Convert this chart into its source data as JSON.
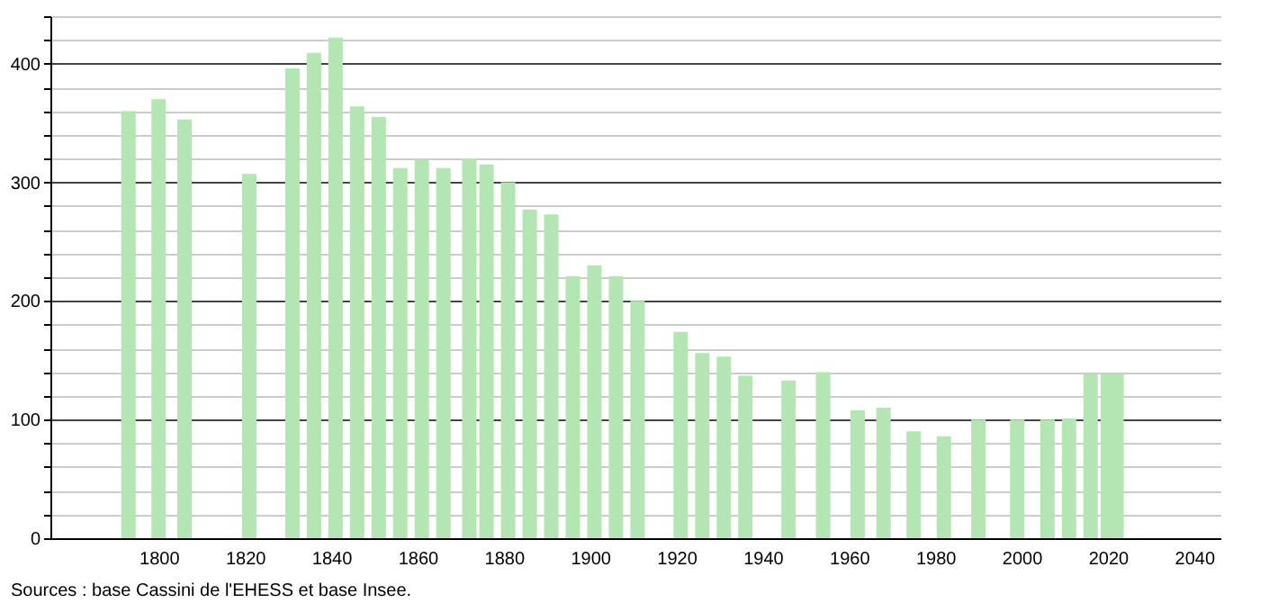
{
  "chart_data": {
    "type": "bar",
    "x": [
      1793,
      1800,
      1806,
      1821,
      1831,
      1836,
      1841,
      1846,
      1851,
      1856,
      1861,
      1866,
      1872,
      1876,
      1881,
      1886,
      1891,
      1896,
      1901,
      1906,
      1911,
      1921,
      1926,
      1931,
      1936,
      1946,
      1954,
      1962,
      1968,
      1975,
      1982,
      1990,
      1999,
      2006,
      2011,
      2016,
      2020,
      2022
    ],
    "values": [
      360,
      370,
      353,
      307,
      396,
      409,
      422,
      364,
      355,
      312,
      319,
      312,
      320,
      315,
      300,
      277,
      273,
      221,
      230,
      221,
      200,
      174,
      156,
      153,
      137,
      133,
      140,
      108,
      110,
      90,
      86,
      100,
      100,
      100,
      101,
      138,
      138,
      138
    ],
    "color": "#b3e6b3",
    "xlim": [
      1777,
      2044
    ],
    "xticks": [
      1800,
      1820,
      1840,
      1860,
      1880,
      1900,
      1920,
      1940,
      1960,
      1980,
      2000,
      2020,
      2040
    ],
    "ylim": [
      0,
      440
    ],
    "yticks": [
      0,
      {
        "value": 20,
        "label": null
      },
      {
        "value": 40,
        "label": null
      },
      {
        "value": 60,
        "label": null
      },
      {
        "value": 80,
        "label": null
      },
      100,
      {
        "value": 120,
        "label": null
      },
      {
        "value": 140,
        "label": null
      },
      {
        "value": 160,
        "label": null
      },
      {
        "value": 180,
        "label": null
      },
      200,
      {
        "value": 220,
        "label": null
      },
      {
        "value": 240,
        "label": null
      },
      {
        "value": 260,
        "label": null
      },
      {
        "value": 280,
        "label": null
      },
      300,
      {
        "value": 320,
        "label": null
      },
      {
        "value": 340,
        "label": null
      },
      {
        "value": 360,
        "label": null
      },
      {
        "value": 380,
        "label": null
      },
      400,
      {
        "value": 420,
        "label": null
      },
      {
        "value": 440,
        "label": null
      }
    ],
    "grid": "y",
    "annotations": [
      "Sources : base Cassini de l'EHESS et base Insee."
    ]
  }
}
